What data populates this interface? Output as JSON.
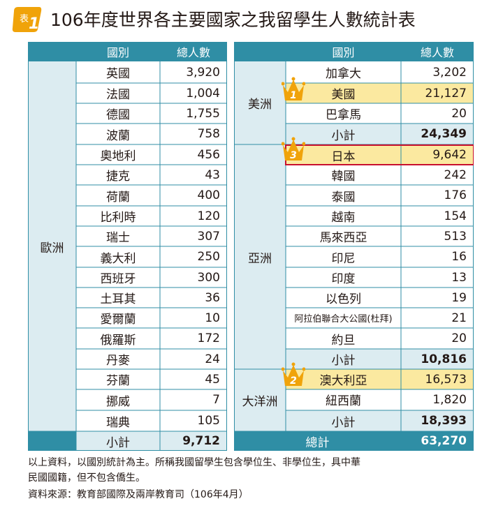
{
  "title": {
    "badge_text": "表",
    "badge_num": "1",
    "text": "106年度世界各主要國家之我留學生人數統計表"
  },
  "headers": {
    "country": "國別",
    "total": "總人數"
  },
  "europe": {
    "region": "歐洲",
    "rows": [
      {
        "country": "英國",
        "value": "3,920"
      },
      {
        "country": "法國",
        "value": "1,004"
      },
      {
        "country": "德國",
        "value": "1,755"
      },
      {
        "country": "波蘭",
        "value": "758"
      },
      {
        "country": "奧地利",
        "value": "456"
      },
      {
        "country": "捷克",
        "value": "43"
      },
      {
        "country": "荷蘭",
        "value": "400"
      },
      {
        "country": "比利時",
        "value": "120"
      },
      {
        "country": "瑞士",
        "value": "307"
      },
      {
        "country": "義大利",
        "value": "250"
      },
      {
        "country": "西班牙",
        "value": "300"
      },
      {
        "country": "土耳其",
        "value": "36"
      },
      {
        "country": "愛爾蘭",
        "value": "10"
      },
      {
        "country": "俄羅斯",
        "value": "172"
      },
      {
        "country": "丹麥",
        "value": "24"
      },
      {
        "country": "芬蘭",
        "value": "45"
      },
      {
        "country": "挪威",
        "value": "7"
      },
      {
        "country": "瑞典",
        "value": "105"
      }
    ],
    "subtotal_label": "小計",
    "subtotal": "9,712"
  },
  "americas": {
    "region": "美洲",
    "rows": [
      {
        "country": "加拿大",
        "value": "3,202"
      },
      {
        "country": "美國",
        "value": "21,127",
        "rank": "1"
      },
      {
        "country": "巴拿馬",
        "value": "20"
      }
    ],
    "subtotal_label": "小計",
    "subtotal": "24,349"
  },
  "asia": {
    "region": "亞洲",
    "rows": [
      {
        "country": "日本",
        "value": "9,642",
        "rank": "3"
      },
      {
        "country": "韓國",
        "value": "242"
      },
      {
        "country": "泰國",
        "value": "176"
      },
      {
        "country": "越南",
        "value": "154"
      },
      {
        "country": "馬來西亞",
        "value": "513"
      },
      {
        "country": "印尼",
        "value": "16"
      },
      {
        "country": "印度",
        "value": "13"
      },
      {
        "country": "以色列",
        "value": "19"
      },
      {
        "country": "阿拉伯聯合大公國(杜拜)",
        "value": "21"
      },
      {
        "country": "約旦",
        "value": "20"
      }
    ],
    "subtotal_label": "小計",
    "subtotal": "10,816"
  },
  "oceania": {
    "region": "大洋洲",
    "rows": [
      {
        "country": "澳大利亞",
        "value": "16,573",
        "rank": "2"
      },
      {
        "country": "紐西蘭",
        "value": "1,820"
      }
    ],
    "subtotal_label": "小計",
    "subtotal": "18,393"
  },
  "grand_total": {
    "label": "總計",
    "value": "63,270"
  },
  "notes": {
    "line1": "以上資料，以國別統計為主。所稱我國留學生包含學位生、非學位生，具中華",
    "line2": "民國國籍，但不包含僑生。",
    "source": "資料來源：教育部國際及兩岸教育司（106年4月）"
  },
  "colors": {
    "header": "#2f8ea5",
    "region_bg": "#dcecf1",
    "highlight": "#fbe9a0",
    "crown": "#f0a30a",
    "japan_border": "#c8102e"
  }
}
